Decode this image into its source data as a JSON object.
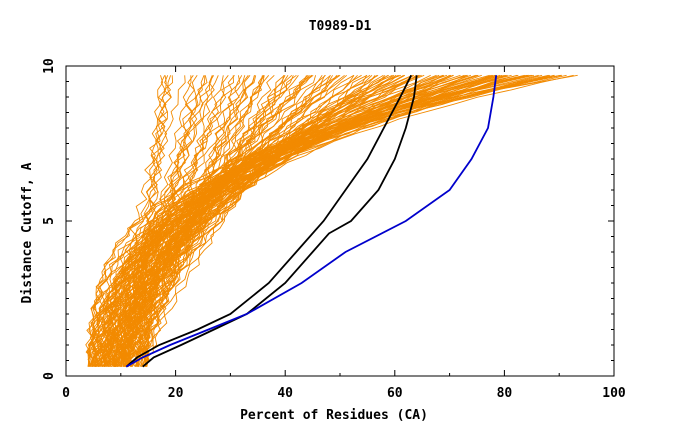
{
  "chart_data": {
    "type": "line",
    "title": "T0989-D1",
    "xlabel": "Percent of Residues (CA)",
    "ylabel": "Distance Cutoff, A",
    "xlim": [
      0,
      100
    ],
    "ylim": [
      0,
      10
    ],
    "x_ticks": [
      0,
      20,
      40,
      60,
      80,
      100
    ],
    "x_tick_labels": [
      "0",
      "20",
      "40",
      "60",
      "80",
      "100"
    ],
    "y_ticks": [
      0,
      5,
      10
    ],
    "y_tick_labels": [
      "0",
      "5",
      "10"
    ],
    "y_minor_step": 0.5,
    "grid": false,
    "legend": "none",
    "colors": {
      "background": "#ffffff",
      "axes": "#000000",
      "other_models": "#f28a00",
      "highlight_black": "#000000",
      "highlight_blue": "#0000cc"
    },
    "series": [
      {
        "color": "black",
        "y": [
          0.3,
          0.6,
          1.0,
          1.5,
          2.0,
          3.0,
          4.0,
          5.0,
          6.0,
          7.0,
          8.0,
          9.0,
          9.7
        ],
        "x": [
          11,
          13,
          17,
          24,
          30,
          37,
          42,
          47,
          51,
          55,
          58,
          61,
          63
        ]
      },
      {
        "color": "black",
        "y": [
          0.3,
          0.6,
          1.0,
          1.5,
          2.0,
          3.0,
          4.0,
          4.6,
          5.0,
          6.0,
          7.0,
          8.0,
          9.0,
          9.7
        ],
        "x": [
          14,
          16,
          21,
          27,
          33,
          40,
          45,
          48,
          52,
          57,
          60,
          62,
          63.5,
          64
        ]
      },
      {
        "color": "blue",
        "y": [
          0.3,
          0.6,
          1.0,
          1.5,
          2.0,
          3.0,
          4.0,
          5.0,
          6.0,
          7.0,
          8.0,
          9.0,
          9.7
        ],
        "x": [
          11,
          14,
          19,
          26,
          33,
          43,
          51,
          62,
          70,
          74,
          77,
          78,
          78.5
        ]
      }
    ]
  }
}
